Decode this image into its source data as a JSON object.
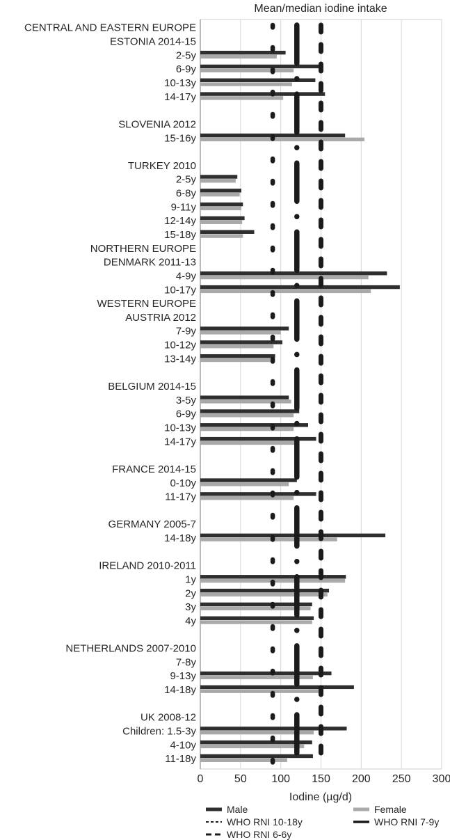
{
  "chart_data": {
    "type": "bar",
    "orientation": "horizontal",
    "title": "Mean/median iodine intake",
    "xlabel": "Iodine (µg/d)",
    "xlim": [
      0,
      300
    ],
    "xticks": [
      0,
      50,
      100,
      150,
      200,
      250,
      300
    ],
    "grid": "vertical, every 50",
    "series_names": [
      "Male",
      "Female"
    ],
    "colors": {
      "male": "#2e2e2e",
      "female": "#a9a9a9",
      "reference_line": "#1b1b1b",
      "gridline": "#d6d6d6",
      "text": "#262626"
    },
    "reference_lines": [
      {
        "label": "WHO RNI 6-6y",
        "value": 90,
        "style": "long-dash"
      },
      {
        "label": "WHO RNI 7-9y",
        "value": 120,
        "style": "dash-dot"
      },
      {
        "label": "WHO RNI 10-18y",
        "value": 150,
        "style": "dash"
      }
    ],
    "rows": [
      {
        "type": "header",
        "label": "CENTRAL AND EASTERN EUROPE"
      },
      {
        "type": "header",
        "label": "ESTONIA 2014-15"
      },
      {
        "type": "data",
        "label": "2-5y",
        "male": 106,
        "female": 95
      },
      {
        "type": "data",
        "label": "6-9y",
        "male": 150,
        "female": 116
      },
      {
        "type": "data",
        "label": "10-13y",
        "male": 143,
        "female": 114
      },
      {
        "type": "data",
        "label": "14-17y",
        "male": 155,
        "female": 103
      },
      {
        "type": "spacer",
        "label": ""
      },
      {
        "type": "header",
        "label": "SLOVENIA 2012"
      },
      {
        "type": "data",
        "label": "15-16y",
        "male": 180,
        "female": 204
      },
      {
        "type": "spacer",
        "label": ""
      },
      {
        "type": "header",
        "label": "TURKEY 2010"
      },
      {
        "type": "data",
        "label": "2-5y",
        "male": 46,
        "female": 44
      },
      {
        "type": "data",
        "label": "6-8y",
        "male": 51,
        "female": 49
      },
      {
        "type": "data",
        "label": "9-11y",
        "male": 53,
        "female": 51
      },
      {
        "type": "data",
        "label": "12-14y",
        "male": 55,
        "female": 52
      },
      {
        "type": "data",
        "label": "15-18y",
        "male": 67,
        "female": 53
      },
      {
        "type": "header",
        "label": "NORTHERN EUROPE"
      },
      {
        "type": "header",
        "label": "DENMARK 2011-13"
      },
      {
        "type": "data",
        "label": "4-9y",
        "male": 232,
        "female": 209
      },
      {
        "type": "data",
        "label": "10-17y",
        "male": 248,
        "female": 212
      },
      {
        "type": "header",
        "label": "WESTERN EUROPE"
      },
      {
        "type": "header",
        "label": "AUSTRIA 2012"
      },
      {
        "type": "data",
        "label": "7-9y",
        "male": 110,
        "female": 100
      },
      {
        "type": "data",
        "label": "10-12y",
        "male": 102,
        "female": 91
      },
      {
        "type": "data",
        "label": "13-14y",
        "male": 93,
        "female": 87
      },
      {
        "type": "spacer",
        "label": ""
      },
      {
        "type": "header",
        "label": "BELGIUM 2014-15"
      },
      {
        "type": "data",
        "label": "3-5y",
        "male": 110,
        "female": 113
      },
      {
        "type": "data",
        "label": "6-9y",
        "male": 123,
        "female": 116
      },
      {
        "type": "data",
        "label": "10-13y",
        "male": 134,
        "female": 116
      },
      {
        "type": "data",
        "label": "14-17y",
        "male": 144,
        "female": 117
      },
      {
        "type": "spacer",
        "label": ""
      },
      {
        "type": "header",
        "label": "FRANCE 2014-15"
      },
      {
        "type": "data",
        "label": "0-10y",
        "male": 120,
        "female": 110
      },
      {
        "type": "data",
        "label": "11-17y",
        "male": 144,
        "female": 116
      },
      {
        "type": "spacer",
        "label": ""
      },
      {
        "type": "header",
        "label": "GERMANY 2005-7"
      },
      {
        "type": "data",
        "label": "14-18y",
        "male": 230,
        "female": 170
      },
      {
        "type": "spacer",
        "label": ""
      },
      {
        "type": "header",
        "label": "IRELAND 2010-2011"
      },
      {
        "type": "data",
        "label": "1y",
        "male": 181,
        "female": 180
      },
      {
        "type": "data",
        "label": "2y",
        "male": 160,
        "female": 158
      },
      {
        "type": "data",
        "label": "3y",
        "male": 139,
        "female": 137
      },
      {
        "type": "data",
        "label": "4y",
        "male": 141,
        "female": 139
      },
      {
        "type": "spacer",
        "label": ""
      },
      {
        "type": "header",
        "label": "NETHERLANDS 2007-2010"
      },
      {
        "type": "data",
        "label": "7-8y",
        "male": null,
        "female": null
      },
      {
        "type": "data",
        "label": "9-13y",
        "male": 163,
        "female": 140
      },
      {
        "type": "data",
        "label": "14-18y",
        "male": 191,
        "female": 150
      },
      {
        "type": "spacer",
        "label": ""
      },
      {
        "type": "header",
        "label": "UK 2008-12"
      },
      {
        "type": "data",
        "label": "Children: 1.5-3y",
        "male": 182,
        "female": 141
      },
      {
        "type": "data",
        "label": "4-10y",
        "male": 139,
        "female": 129
      },
      {
        "type": "data",
        "label": "11-18y",
        "male": 140,
        "female": 108
      }
    ],
    "legend": [
      {
        "label": "Male",
        "swatch": "male-bar"
      },
      {
        "label": "Female",
        "swatch": "female-bar"
      },
      {
        "label": "WHO RNI 10-18y",
        "swatch": "fine-dash"
      },
      {
        "label": "WHO RNI 7-9y",
        "swatch": "solid"
      },
      {
        "label": "WHO RNI 6-6y",
        "swatch": "long-dash"
      }
    ],
    "legend_position": "bottom"
  }
}
